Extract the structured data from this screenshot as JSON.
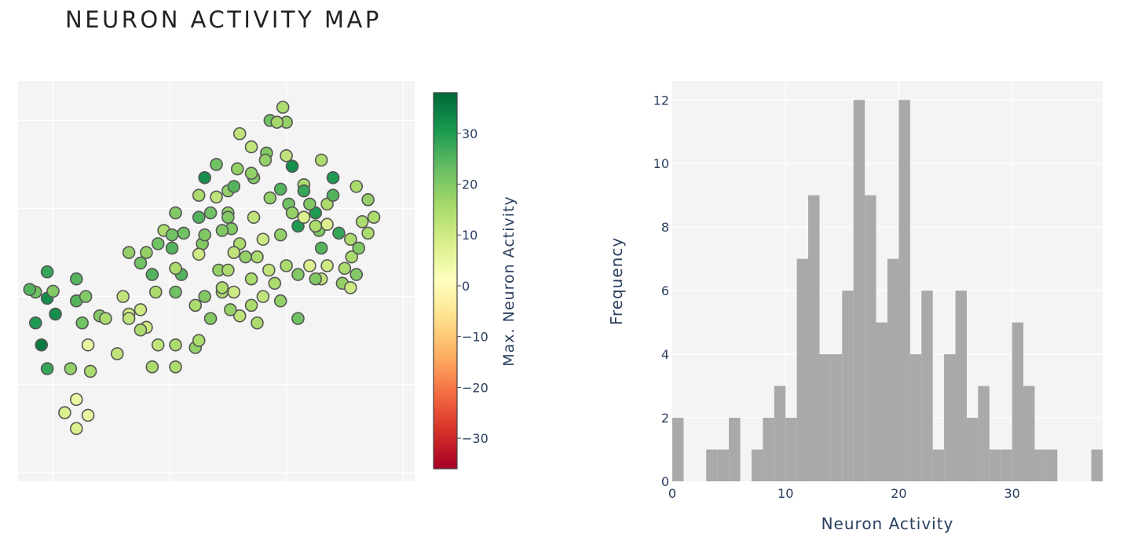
{
  "title": "NEURON ACTIVITY MAP",
  "chart_data": [
    {
      "type": "scatter",
      "colorbar_label": "Max. Neuron Activity",
      "colorbar_ticks": [
        "30",
        "20",
        "10",
        "0",
        "−10",
        "−20",
        "−30"
      ],
      "colorbar_tick_values": [
        30,
        20,
        10,
        0,
        -10,
        -20,
        -30
      ],
      "colorbar_range": [
        -36,
        38
      ],
      "colorscale": "RdYlGn",
      "colorscale_stops": [
        "#a50026",
        "#d73027",
        "#f46d43",
        "#fdae61",
        "#fee08b",
        "#ffffbf",
        "#d9ef8b",
        "#a6d96a",
        "#66bd63",
        "#1a9850",
        "#006837"
      ],
      "x_tick_labels": [],
      "y_tick_labels": [],
      "xlim": [
        -1.3,
        2.1
      ],
      "ylim": [
        -2.1,
        2.45
      ],
      "grid": true,
      "points": [
        [
          0.97,
          2.15,
          15
        ],
        [
          0.86,
          2.0,
          22
        ],
        [
          1.0,
          1.98,
          18
        ],
        [
          0.6,
          1.85,
          12
        ],
        [
          0.7,
          1.7,
          12
        ],
        [
          0.83,
          1.63,
          20
        ],
        [
          0.92,
          1.98,
          16
        ],
        [
          0.4,
          1.5,
          22
        ],
        [
          0.58,
          1.45,
          18
        ],
        [
          1.05,
          1.48,
          32
        ],
        [
          1.3,
          1.55,
          15
        ],
        [
          1.4,
          1.35,
          30
        ],
        [
          0.5,
          1.2,
          18
        ],
        [
          0.72,
          1.35,
          20
        ],
        [
          1.15,
          1.27,
          15
        ],
        [
          0.86,
          1.12,
          18
        ],
        [
          1.02,
          1.05,
          22
        ],
        [
          1.1,
          0.8,
          30
        ],
        [
          0.4,
          1.13,
          12
        ],
        [
          0.25,
          1.15,
          15
        ],
        [
          0.28,
          0.6,
          20
        ],
        [
          0.72,
          0.9,
          12
        ],
        [
          0.8,
          0.65,
          10
        ],
        [
          0.53,
          0.77,
          20
        ],
        [
          1.35,
          1.05,
          15
        ],
        [
          1.35,
          0.35,
          10
        ],
        [
          0.5,
          0.95,
          18
        ],
        [
          0.6,
          0.6,
          15
        ],
        [
          1.25,
          0.95,
          30
        ],
        [
          1.4,
          1.15,
          25
        ],
        [
          1.2,
          1.05,
          20
        ],
        [
          1.28,
          0.75,
          20
        ],
        [
          1.3,
          0.55,
          25
        ],
        [
          0.3,
          1.35,
          32
        ],
        [
          0.55,
          1.25,
          25
        ],
        [
          0.7,
          1.4,
          18
        ],
        [
          0.82,
          1.55,
          18
        ],
        [
          1.0,
          1.6,
          12
        ],
        [
          0.95,
          1.22,
          25
        ],
        [
          1.15,
          1.2,
          28
        ],
        [
          0.35,
          0.95,
          22
        ],
        [
          0.12,
          0.72,
          22
        ],
        [
          0.25,
          0.48,
          10
        ],
        [
          0.02,
          0.55,
          25
        ],
        [
          -0.2,
          0.5,
          18
        ],
        [
          -0.35,
          0.5,
          18
        ],
        [
          -0.05,
          0.75,
          15
        ],
        [
          -0.25,
          0.38,
          22
        ],
        [
          0.05,
          0.05,
          22
        ],
        [
          0.1,
          0.25,
          25
        ],
        [
          0.42,
          0.3,
          18
        ],
        [
          0.55,
          0.05,
          10
        ],
        [
          0.7,
          0.2,
          15
        ],
        [
          0.85,
          0.3,
          12
        ],
        [
          1.0,
          0.35,
          15
        ],
        [
          1.2,
          0.35,
          8
        ],
        [
          1.3,
          0.2,
          12
        ],
        [
          1.48,
          0.15,
          18
        ],
        [
          1.5,
          0.32,
          15
        ],
        [
          1.56,
          0.45,
          15
        ],
        [
          1.55,
          0.1,
          10
        ],
        [
          1.62,
          0.55,
          20
        ],
        [
          1.6,
          0.25,
          20
        ],
        [
          1.7,
          0.72,
          15
        ],
        [
          1.65,
          0.85,
          15
        ],
        [
          1.45,
          0.72,
          28
        ],
        [
          1.55,
          0.65,
          15
        ],
        [
          1.6,
          1.25,
          15
        ],
        [
          1.7,
          1.1,
          18
        ],
        [
          1.75,
          0.9,
          15
        ],
        [
          1.35,
          0.82,
          8
        ],
        [
          1.25,
          0.8,
          15
        ],
        [
          1.05,
          0.95,
          18
        ],
        [
          1.15,
          0.9,
          8
        ],
        [
          0.95,
          0.7,
          18
        ],
        [
          0.45,
          0.05,
          15
        ],
        [
          0.3,
          0.0,
          20
        ],
        [
          0.22,
          -0.1,
          15
        ],
        [
          -0.15,
          0.25,
          25
        ],
        [
          0.9,
          0.15,
          15
        ],
        [
          1.1,
          0.25,
          20
        ],
        [
          1.25,
          0.2,
          20
        ],
        [
          0.8,
          0.0,
          12
        ],
        [
          0.6,
          -0.22,
          12
        ],
        [
          0.7,
          -0.1,
          15
        ],
        [
          1.1,
          -0.25,
          22
        ],
        [
          0.95,
          -0.05,
          18
        ],
        [
          0.52,
          -0.15,
          18
        ],
        [
          0.35,
          -0.25,
          20
        ],
        [
          0.55,
          0.5,
          12
        ],
        [
          0.75,
          0.45,
          15
        ],
        [
          0.5,
          0.3,
          15
        ],
        [
          -0.1,
          0.6,
          22
        ],
        [
          0.5,
          0.9,
          20
        ],
        [
          0.25,
          0.9,
          25
        ],
        [
          0.02,
          0.7,
          22
        ],
        [
          0.05,
          0.95,
          20
        ],
        [
          0.45,
          0.75,
          20
        ],
        [
          0.3,
          0.7,
          20
        ],
        [
          0.65,
          0.45,
          18
        ],
        [
          0.45,
          0.1,
          15
        ],
        [
          0.05,
          0.32,
          15
        ],
        [
          -0.12,
          0.05,
          15
        ],
        [
          -0.2,
          -0.35,
          10
        ],
        [
          -0.25,
          -0.15,
          10
        ],
        [
          -0.35,
          -0.2,
          10
        ],
        [
          -0.4,
          0.0,
          12
        ],
        [
          -0.6,
          -0.22,
          20
        ],
        [
          -0.75,
          -0.3,
          22
        ],
        [
          -0.98,
          -0.2,
          32
        ],
        [
          -0.8,
          0.2,
          25
        ],
        [
          -1.05,
          -0.02,
          32
        ],
        [
          -1.15,
          -0.3,
          30
        ],
        [
          -1.1,
          -0.55,
          35
        ],
        [
          -1.05,
          -0.82,
          28
        ],
        [
          -0.85,
          -0.82,
          18
        ],
        [
          -0.7,
          -0.55,
          5
        ],
        [
          -0.55,
          -0.25,
          15
        ],
        [
          -0.8,
          -0.05,
          25
        ],
        [
          -0.72,
          0.0,
          20
        ],
        [
          -1.0,
          0.06,
          20
        ],
        [
          -1.15,
          0.05,
          22
        ],
        [
          -1.2,
          0.08,
          25
        ],
        [
          -1.05,
          0.28,
          28
        ],
        [
          -0.45,
          -0.65,
          12
        ],
        [
          -0.25,
          -0.38,
          15
        ],
        [
          -0.1,
          -0.55,
          12
        ],
        [
          0.05,
          -0.55,
          15
        ],
        [
          0.22,
          -0.58,
          18
        ],
        [
          0.05,
          -0.8,
          15
        ],
        [
          -0.15,
          -0.8,
          15
        ],
        [
          -0.68,
          -0.85,
          15
        ],
        [
          -0.8,
          -1.17,
          5
        ],
        [
          -0.9,
          -1.32,
          8
        ],
        [
          -0.7,
          -1.35,
          5
        ],
        [
          -0.8,
          -1.5,
          8
        ],
        [
          0.25,
          -0.5,
          15
        ],
        [
          -0.35,
          -0.25,
          12
        ],
        [
          0.75,
          -0.3,
          15
        ]
      ]
    },
    {
      "type": "bar",
      "xlabel": "Neuron Activity",
      "ylabel": "Frequency",
      "xlim": [
        0,
        38
      ],
      "ylim": [
        0,
        12.6
      ],
      "x_ticks": [
        0,
        10,
        20,
        30
      ],
      "y_ticks": [
        0,
        2,
        4,
        6,
        8,
        10,
        12
      ],
      "bin_width": 1,
      "bin_edges_start": 0,
      "bar_color": "#a9a9a9",
      "values": [
        2,
        0,
        0,
        1,
        1,
        2,
        0,
        1,
        2,
        3,
        2,
        7,
        9,
        4,
        4,
        6,
        12,
        9,
        5,
        7,
        12,
        4,
        6,
        1,
        4,
        6,
        2,
        3,
        1,
        1,
        5,
        3,
        1,
        1,
        0,
        0,
        0,
        1
      ],
      "grid": true
    }
  ]
}
